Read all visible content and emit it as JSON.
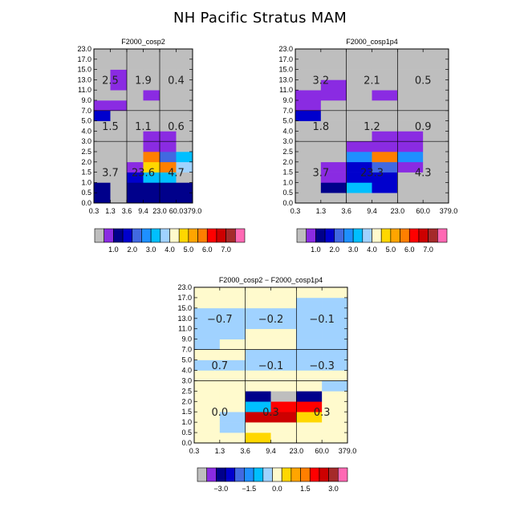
{
  "page": {
    "title": "NH Pacific Stratus MAM"
  },
  "y_tick_labels": [
    "0.0",
    "0.5",
    "1.0",
    "1.5",
    "2.0",
    "2.5",
    "3.0",
    "4.0",
    "5.0",
    "7.0",
    "9.0",
    "11.0",
    "13.0",
    "15.0",
    "17.0",
    "23.0"
  ],
  "x_tick_labels": [
    "0.3",
    "1.3",
    "3.6",
    "9.4",
    "23.0",
    "60.0",
    "379.0"
  ],
  "colorbar_abs": {
    "colors": [
      "#bebebe",
      "#8a2be2",
      "#00008b",
      "#0000cd",
      "#4169e1",
      "#1e90ff",
      "#00bfff",
      "#a0d2ff",
      "#fffacd",
      "#ffd700",
      "#ffa500",
      "#ff7f00",
      "#ff0000",
      "#cd0000",
      "#a52a2a",
      "#ff69b4"
    ],
    "labels": [
      "1.0",
      "2.0",
      "3.0",
      "4.0",
      "5.0",
      "6.0",
      "7.0"
    ]
  },
  "colorbar_diff": {
    "colors": [
      "#bebebe",
      "#8a2be2",
      "#00008b",
      "#0000cd",
      "#4169e1",
      "#1e90ff",
      "#00bfff",
      "#a0d2ff",
      "#fffacd",
      "#ffd700",
      "#ffa500",
      "#ff7f00",
      "#ff0000",
      "#cd0000",
      "#a52a2a",
      "#ff69b4"
    ],
    "labels": [
      "−3.0",
      "−1.5",
      "0.0",
      "1.5",
      "3.0"
    ]
  },
  "chart_data": [
    {
      "type": "heatmap",
      "title": "F2000_cosp2",
      "x_edges": [
        "0.3",
        "1.3",
        "3.6",
        "9.4",
        "23.0",
        "60.0",
        "379.0"
      ],
      "y_edges": [
        "0.0",
        "0.5",
        "1.0",
        "1.5",
        "2.0",
        "2.5",
        "3.0",
        "4.0",
        "5.0",
        "7.0",
        "9.0",
        "11.0",
        "13.0",
        "15.0",
        "17.0",
        "23.0"
      ],
      "cells": [
        [
          2,
          0,
          2,
          2,
          2,
          2
        ],
        [
          2,
          0,
          2,
          2,
          2,
          2
        ],
        [
          0,
          0,
          3,
          6,
          6,
          0
        ],
        [
          0,
          0,
          1,
          9,
          11,
          7
        ],
        [
          0,
          0,
          0,
          11,
          4,
          6
        ],
        [
          0,
          0,
          0,
          1,
          1,
          0
        ],
        [
          0,
          0,
          0,
          1,
          1,
          0
        ],
        [
          0,
          0,
          0,
          0,
          0,
          0
        ],
        [
          3,
          0,
          0,
          0,
          0,
          0
        ],
        [
          1,
          1,
          0,
          0,
          0,
          0
        ],
        [
          0,
          0,
          0,
          1,
          0,
          0
        ],
        [
          0,
          1,
          0,
          0,
          0,
          0
        ],
        [
          0,
          1,
          0,
          0,
          0,
          0
        ],
        [
          0,
          0,
          0,
          0,
          0,
          0
        ],
        [
          0,
          0,
          0,
          0,
          0,
          0
        ]
      ],
      "group_values": [
        [
          "3.7",
          "23.6",
          "4.7"
        ],
        [
          "1.5",
          "1.1",
          "0.6"
        ],
        [
          "2.5",
          "1.9",
          "0.4"
        ]
      ]
    },
    {
      "type": "heatmap",
      "title": "F2000_cosp1p4",
      "x_edges": [
        "0.3",
        "1.3",
        "3.6",
        "9.4",
        "23.0",
        "60.0",
        "379.0"
      ],
      "y_edges": [
        "0.0",
        "0.5",
        "1.0",
        "1.5",
        "2.0",
        "2.5",
        "3.0",
        "4.0",
        "5.0",
        "7.0",
        "9.0",
        "11.0",
        "13.0",
        "15.0",
        "17.0",
        "23.0"
      ],
      "cells": [
        [
          0,
          0,
          0,
          0,
          0,
          0
        ],
        [
          0,
          2,
          6,
          3,
          0,
          0
        ],
        [
          0,
          1,
          3,
          3,
          0,
          0
        ],
        [
          0,
          1,
          3,
          4,
          1,
          0
        ],
        [
          0,
          0,
          5,
          11,
          5,
          0
        ],
        [
          0,
          0,
          1,
          1,
          1,
          0
        ],
        [
          0,
          0,
          0,
          1,
          1,
          0
        ],
        [
          0,
          0,
          0,
          0,
          0,
          0
        ],
        [
          3,
          0,
          0,
          0,
          0,
          0
        ],
        [
          1,
          0,
          0,
          0,
          0,
          0
        ],
        [
          1,
          1,
          0,
          1,
          0,
          0
        ],
        [
          0,
          1,
          0,
          0,
          0,
          0
        ],
        [
          0,
          0,
          0,
          0,
          0,
          0
        ],
        [
          0,
          0,
          0,
          0,
          0,
          0
        ],
        [
          0,
          0,
          0,
          0,
          0,
          0
        ]
      ],
      "group_values": [
        [
          "3.7",
          "23.3",
          "4.3"
        ],
        [
          "1.8",
          "1.2",
          "0.9"
        ],
        [
          "3.2",
          "2.1",
          "0.5"
        ]
      ]
    },
    {
      "type": "heatmap",
      "title": "F2000_cosp2 − F2000_cosp1p4",
      "x_edges": [
        "0.3",
        "1.3",
        "3.6",
        "9.4",
        "23.0",
        "60.0",
        "379.0"
      ],
      "y_edges": [
        "0.0",
        "0.5",
        "1.0",
        "1.5",
        "2.0",
        "2.5",
        "3.0",
        "4.0",
        "5.0",
        "7.0",
        "9.0",
        "11.0",
        "13.0",
        "15.0",
        "17.0",
        "23.0"
      ],
      "cells": [
        [
          8,
          8,
          9,
          8,
          8,
          8
        ],
        [
          8,
          7,
          8,
          8,
          8,
          8
        ],
        [
          8,
          7,
          13,
          13,
          9,
          8
        ],
        [
          8,
          8,
          6,
          12,
          12,
          8
        ],
        [
          8,
          8,
          2,
          0,
          2,
          8
        ],
        [
          8,
          8,
          8,
          8,
          8,
          7
        ],
        [
          8,
          8,
          8,
          8,
          8,
          8
        ],
        [
          7,
          7,
          7,
          7,
          7,
          7
        ],
        [
          8,
          8,
          7,
          7,
          7,
          7
        ],
        [
          7,
          8,
          8,
          8,
          7,
          7
        ],
        [
          7,
          7,
          8,
          8,
          7,
          7
        ],
        [
          7,
          7,
          7,
          7,
          7,
          7
        ],
        [
          7,
          7,
          7,
          7,
          7,
          7
        ],
        [
          8,
          8,
          8,
          8,
          7,
          7
        ],
        [
          8,
          8,
          8,
          8,
          8,
          8
        ]
      ],
      "group_values": [
        [
          "0.0",
          "0.3",
          "0.3"
        ],
        [
          "0.7",
          "−0.1",
          "−0.3"
        ],
        [
          "−0.7",
          "−0.2",
          "−0.1"
        ]
      ]
    }
  ]
}
